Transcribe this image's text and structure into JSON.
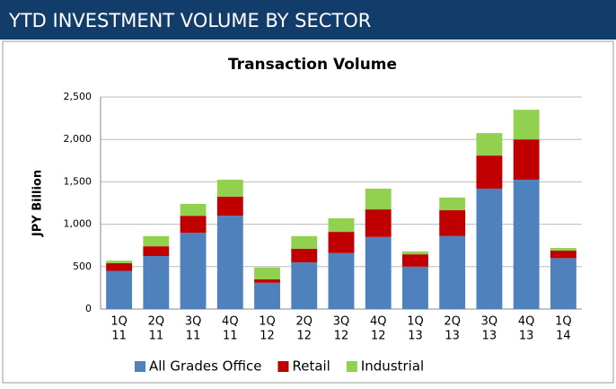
{
  "header": {
    "title": "YTD INVESTMENT VOLUME BY SECTOR"
  },
  "chart_data": {
    "type": "bar",
    "stacked": true,
    "title": "Transaction Volume",
    "y_label": "JPY  Billion",
    "categories": [
      [
        "1Q",
        "11"
      ],
      [
        "2Q",
        "11"
      ],
      [
        "3Q",
        "11"
      ],
      [
        "4Q",
        "11"
      ],
      [
        "1Q",
        "12"
      ],
      [
        "2Q",
        "12"
      ],
      [
        "3Q",
        "12"
      ],
      [
        "4Q",
        "12"
      ],
      [
        "1Q",
        "13"
      ],
      [
        "2Q",
        "13"
      ],
      [
        "3Q",
        "13"
      ],
      [
        "4Q",
        "13"
      ],
      [
        "1Q",
        "14"
      ]
    ],
    "series": [
      {
        "name": "All Grades Office",
        "color": "#4f81bd",
        "values": [
          450,
          625,
          900,
          1100,
          310,
          550,
          660,
          850,
          500,
          860,
          1420,
          1525,
          600
        ]
      },
      {
        "name": "Retail",
        "color": "#c00000",
        "values": [
          90,
          115,
          200,
          225,
          40,
          160,
          250,
          325,
          145,
          305,
          390,
          475,
          90
        ]
      },
      {
        "name": "Industrial",
        "color": "#92d050",
        "values": [
          30,
          120,
          140,
          200,
          140,
          150,
          160,
          245,
          35,
          150,
          265,
          350,
          30
        ]
      }
    ],
    "ylim": [
      0,
      2500
    ],
    "yticks": [
      0,
      500,
      {
        "value": 1000,
        "label": "1,000"
      },
      {
        "value": 1500,
        "label": "1,500"
      },
      {
        "value": 2000,
        "label": "2,000"
      },
      {
        "value": 2500,
        "label": "2,500"
      }
    ],
    "grid": true,
    "legend": "bottom"
  }
}
